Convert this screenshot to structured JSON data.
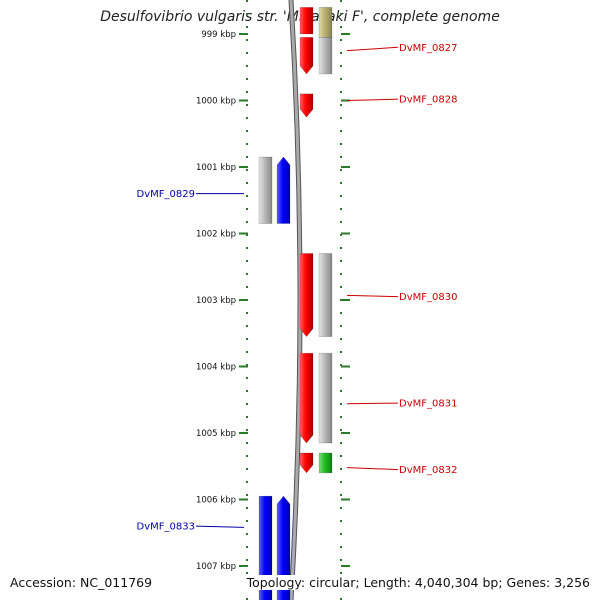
{
  "title": "Desulfovibrio vulgaris str. 'Miyazaki F', complete genome",
  "footer": {
    "accession": "Accession: NC_011769",
    "summary": "Topology: circular; Length: 4,040,304 bp; Genes: 3,256"
  },
  "colors": {
    "forward_gene": "#ff0000",
    "reverse_gene": "#0000ff",
    "other_feature": "#b8b8b8",
    "rna_feature": "#22bb22",
    "misc_feature": "#b8b070",
    "label_forward": "#cc0000",
    "label_reverse": "#0000aa",
    "tick": "#2a7a2a",
    "backbone": "#888888"
  },
  "view": {
    "start_kbp": 998.65,
    "end_kbp": 1007.6
  },
  "ticks": [
    {
      "pos": 999,
      "label": "999 kbp"
    },
    {
      "pos": 1000,
      "label": "1000 kbp"
    },
    {
      "pos": 1001,
      "label": "1001 kbp"
    },
    {
      "pos": 1002,
      "label": "1002 kbp"
    },
    {
      "pos": 1003,
      "label": "1003 kbp"
    },
    {
      "pos": 1004,
      "label": "1004 kbp"
    },
    {
      "pos": 1005,
      "label": "1005 kbp"
    },
    {
      "pos": 1006,
      "label": "1006 kbp"
    },
    {
      "pos": 1007,
      "label": "1007 kbp"
    }
  ],
  "features": [
    {
      "track": "fwd",
      "kind": "gene",
      "start": 998.6,
      "end": 999.0,
      "arrow": false
    },
    {
      "track": "fwd-outer",
      "kind": "misc",
      "start": 998.6,
      "end": 999.05,
      "arrow": false
    },
    {
      "track": "fwd",
      "kind": "gene",
      "start": 999.05,
      "end": 999.6,
      "arrow": true
    },
    {
      "track": "fwd-outer",
      "kind": "other",
      "start": 999.05,
      "end": 999.6,
      "arrow": false
    },
    {
      "track": "fwd",
      "kind": "gene",
      "start": 999.9,
      "end": 1000.25,
      "arrow": true
    },
    {
      "track": "rev",
      "kind": "gene",
      "start": 1000.85,
      "end": 1001.85,
      "arrow": true
    },
    {
      "track": "rev-outer",
      "kind": "other",
      "start": 1000.85,
      "end": 1001.85,
      "arrow": false
    },
    {
      "track": "fwd",
      "kind": "gene",
      "start": 1002.3,
      "end": 1003.55,
      "arrow": true
    },
    {
      "track": "fwd-outer",
      "kind": "other",
      "start": 1002.3,
      "end": 1003.55,
      "arrow": false
    },
    {
      "track": "fwd",
      "kind": "gene",
      "start": 1003.8,
      "end": 1005.15,
      "arrow": true
    },
    {
      "track": "fwd-outer",
      "kind": "other",
      "start": 1003.8,
      "end": 1005.15,
      "arrow": false
    },
    {
      "track": "fwd",
      "kind": "gene",
      "start": 1005.3,
      "end": 1005.6,
      "arrow": true
    },
    {
      "track": "fwd-outer",
      "kind": "rna",
      "start": 1005.3,
      "end": 1005.6,
      "arrow": false
    },
    {
      "track": "rev",
      "kind": "gene",
      "start": 1005.95,
      "end": 1007.6,
      "arrow": true
    },
    {
      "track": "rev-outer",
      "kind": "gene",
      "start": 1005.95,
      "end": 1007.6,
      "arrow": false
    }
  ],
  "labels": [
    {
      "text": "DvMF_0827",
      "side": "right",
      "pos": 999.2,
      "anchor": 999.25
    },
    {
      "text": "DvMF_0828",
      "side": "right",
      "pos": 999.98,
      "anchor": 1000.0
    },
    {
      "text": "DvMF_0829",
      "side": "left",
      "pos": 1001.4,
      "anchor": 1001.4
    },
    {
      "text": "DvMF_0830",
      "side": "right",
      "pos": 1002.95,
      "anchor": 1002.93
    },
    {
      "text": "DvMF_0831",
      "side": "right",
      "pos": 1004.55,
      "anchor": 1004.56
    },
    {
      "text": "DvMF_0832",
      "side": "right",
      "pos": 1005.55,
      "anchor": 1005.52
    },
    {
      "text": "DvMF_0833",
      "side": "left",
      "pos": 1006.4,
      "anchor": 1006.42
    }
  ]
}
